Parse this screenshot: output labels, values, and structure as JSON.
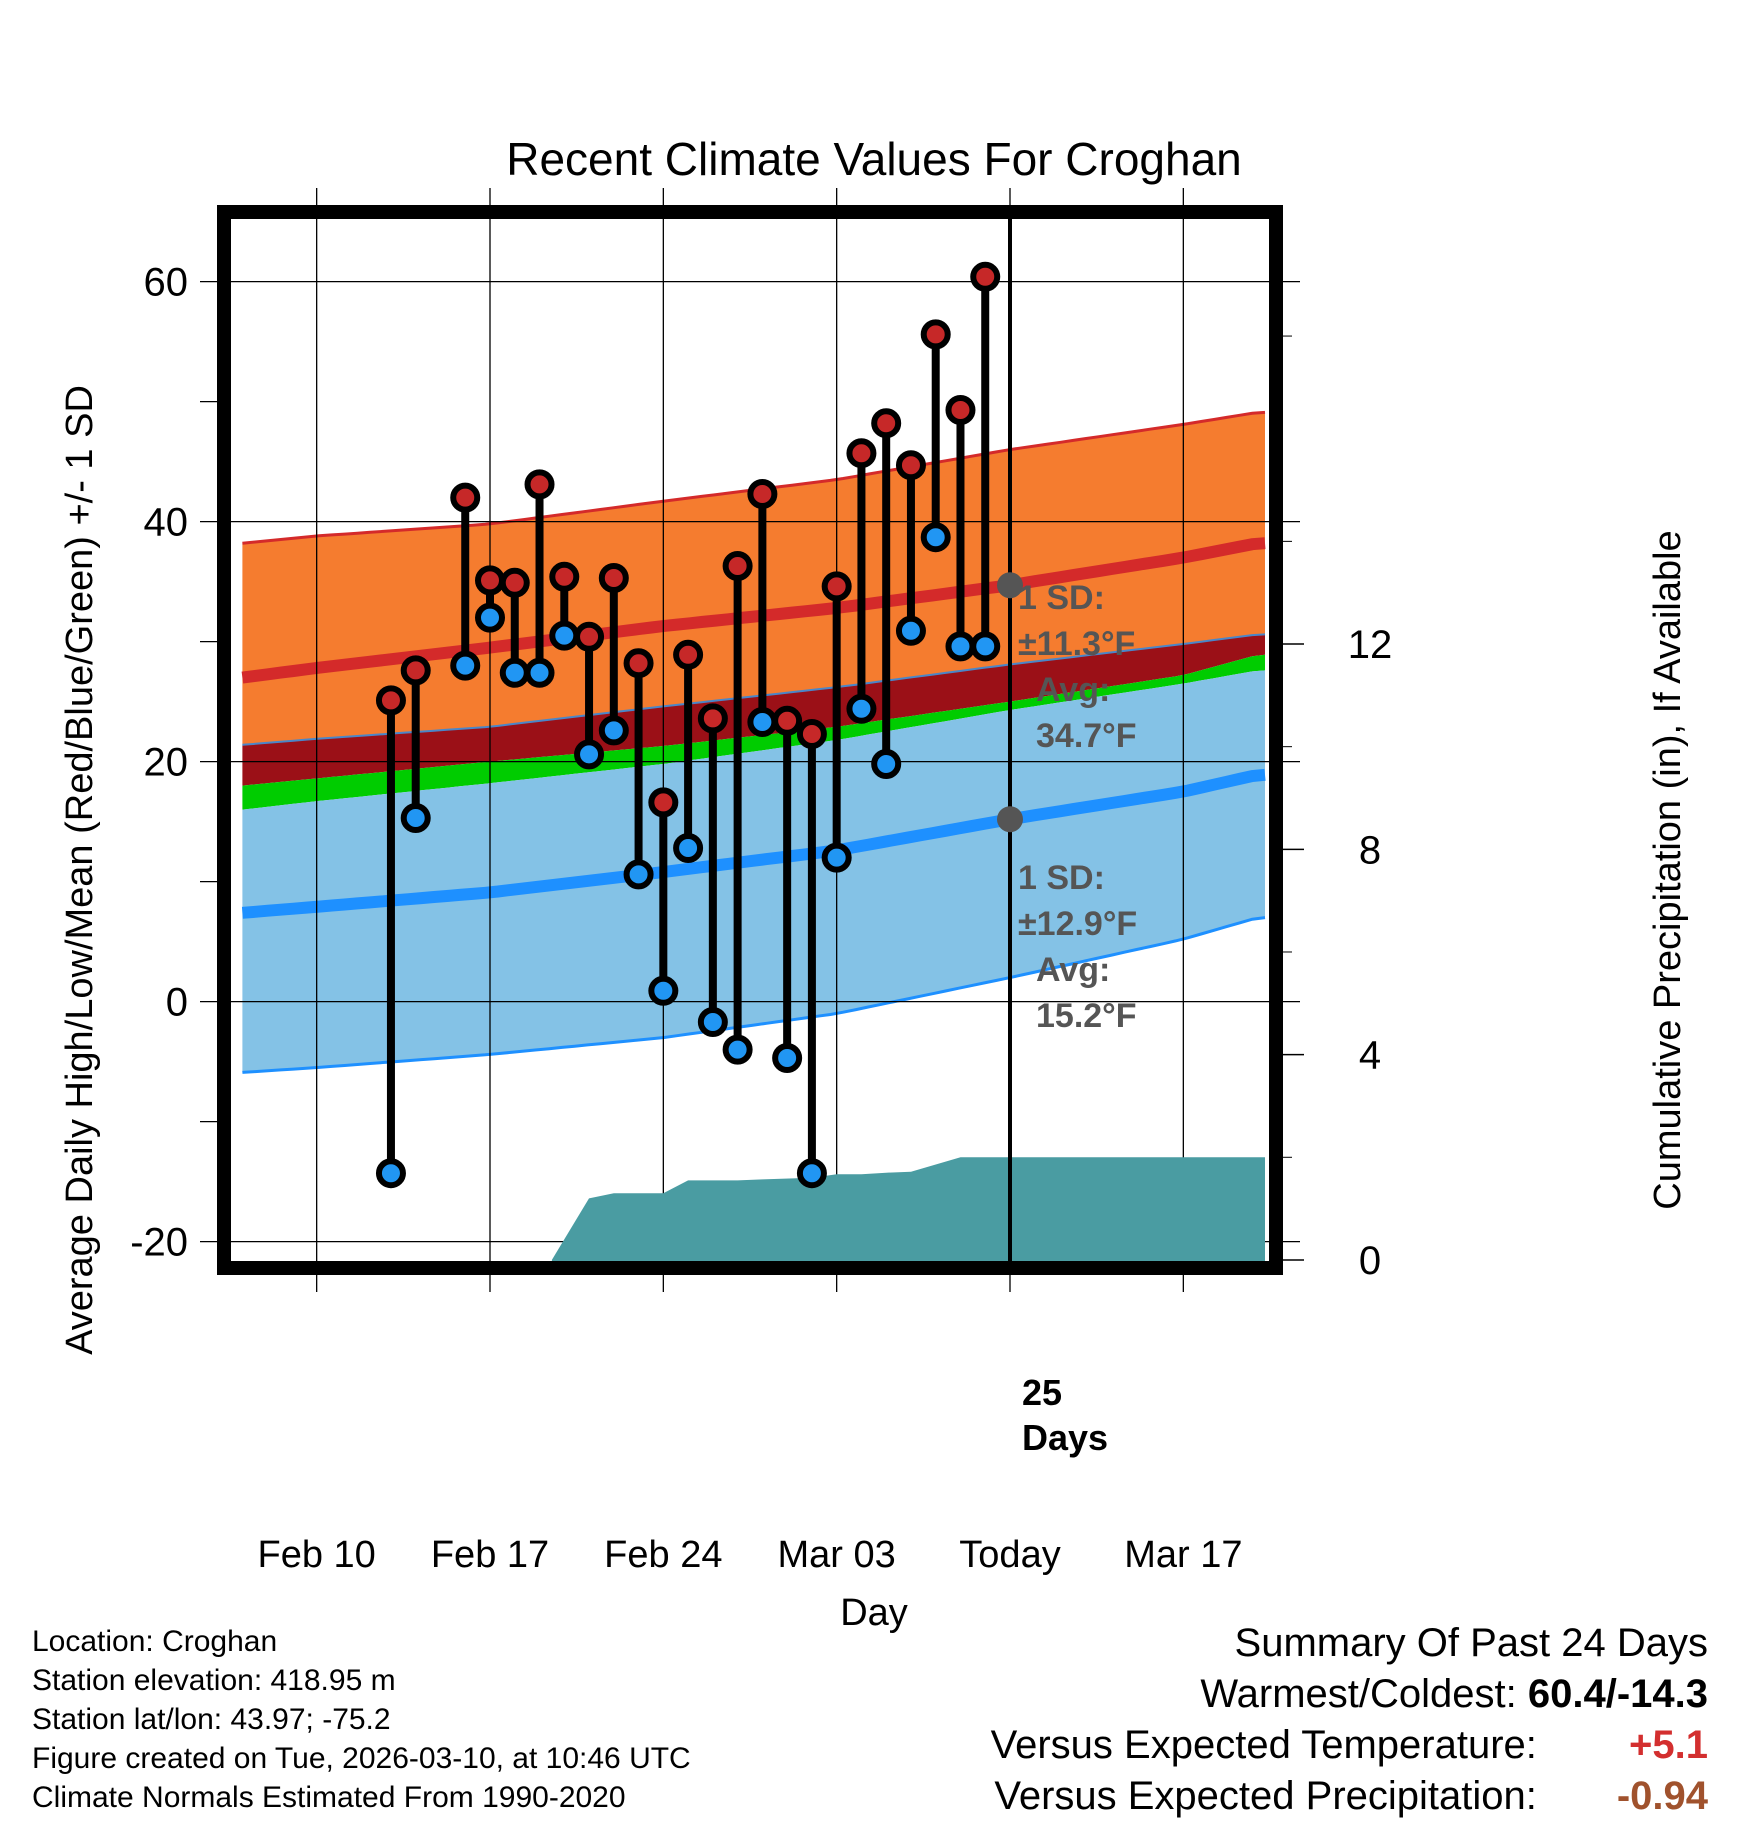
{
  "chart_data": {
    "type": "line",
    "title": "Recent Climate Values For Croghan",
    "xlabel": "Day",
    "ylabel": "Average Daily High/Low/Mean (Red/Blue/Green) +/- 1 SD",
    "y2label": "Cumulative Precipitation (in), If Available",
    "x_unit": "days since Feb 10",
    "xlim": [
      -3.5,
      38.5
    ],
    "ylim": [
      -21.7,
      65.3
    ],
    "y2lim": [
      -0.04,
      20.3
    ],
    "x_tick_labels": [
      {
        "x": 0,
        "label": "Feb 10"
      },
      {
        "x": 7,
        "label": "Feb 17"
      },
      {
        "x": 14,
        "label": "Feb 24"
      },
      {
        "x": 21,
        "label": "Mar 03"
      },
      {
        "x": 28,
        "label": "Today"
      },
      {
        "x": 35,
        "label": "Mar 17"
      }
    ],
    "y_ticks": [
      -20,
      0,
      20,
      40,
      60
    ],
    "y_minor_ticks": [
      -10,
      10,
      30,
      50
    ],
    "y2_ticks": [
      0,
      4,
      8,
      12
    ],
    "today_x": 28,
    "normals": {
      "x": [
        -3,
        0,
        7,
        14,
        21,
        28,
        35,
        38
      ],
      "high_mean": [
        27.0,
        27.8,
        29.5,
        31.3,
        32.8,
        34.7,
        37.0,
        38.2
      ],
      "high_plus_sd": [
        38.2,
        38.8,
        39.8,
        41.7,
        43.5,
        46.0,
        48.1,
        49.1
      ],
      "high_minus_sd": [
        21.4,
        21.9,
        22.9,
        24.6,
        26.2,
        28.1,
        29.8,
        30.6
      ],
      "mean_upper": [
        18.0,
        18.6,
        20.0,
        21.3,
        22.9,
        25.0,
        27.2,
        28.9
      ],
      "low_mean": [
        7.4,
        7.9,
        9.1,
        10.8,
        12.6,
        15.2,
        17.5,
        18.9
      ],
      "low_plus_sd": [
        16.0,
        16.7,
        18.2,
        19.8,
        21.8,
        24.3,
        26.5,
        27.6
      ],
      "low_minus_sd": [
        -5.9,
        -5.5,
        -4.4,
        -3.0,
        -1.0,
        2.0,
        5.2,
        7.0
      ]
    },
    "series": [
      {
        "name": "Daily High",
        "x": [
          3,
          4,
          6,
          7,
          8,
          9,
          10,
          11,
          12,
          13,
          14,
          15,
          16,
          17,
          18,
          19,
          20,
          21,
          22,
          23,
          24,
          25,
          26,
          27
        ],
        "values": [
          25.1,
          27.6,
          42.0,
          35.1,
          34.9,
          43.1,
          35.4,
          30.4,
          35.3,
          28.2,
          16.6,
          28.9,
          23.6,
          36.3,
          42.3,
          23.4,
          22.3,
          34.6,
          45.7,
          48.2,
          44.7,
          55.6,
          49.3,
          60.4
        ]
      },
      {
        "name": "Daily Low",
        "x": [
          3,
          4,
          6,
          7,
          8,
          9,
          10,
          11,
          12,
          13,
          14,
          15,
          16,
          17,
          18,
          19,
          20,
          21,
          22,
          23,
          24,
          25,
          26,
          27
        ],
        "values": [
          -14.3,
          15.3,
          28.0,
          32.0,
          27.4,
          27.4,
          30.5,
          20.6,
          22.6,
          10.6,
          0.9,
          12.8,
          -1.7,
          -4.0,
          23.3,
          -4.7,
          -14.3,
          12.0,
          24.4,
          19.8,
          30.9,
          38.7,
          29.6,
          29.6
        ]
      },
      {
        "name": "Cumulative Precipitation",
        "x": [
          9.5,
          11,
          12,
          14,
          15,
          17,
          18,
          20,
          21,
          22,
          23,
          24,
          26,
          38.3
        ],
        "values": [
          0.0,
          1.2,
          1.3,
          1.3,
          1.55,
          1.55,
          1.57,
          1.6,
          1.67,
          1.67,
          1.7,
          1.72,
          2.0,
          2.0
        ]
      }
    ],
    "annotations": {
      "high": {
        "sd_label": "1 SD:",
        "sd_value": "±11.3°F",
        "avg_label": "Avg:",
        "avg_value": "34.7°F",
        "avg": 34.7
      },
      "low": {
        "sd_label": "1 SD:",
        "sd_value": "±12.9°F",
        "avg_label": "Avg:",
        "avg_value": "15.2°F",
        "avg": 15.2
      },
      "days_count": "25",
      "days_label": "Days"
    }
  },
  "colors": {
    "high_band": "#f57c2f",
    "high_line": "#d42a2a",
    "mean_band": "#9b1017",
    "mean_green": "#00cc00",
    "low_band": "#84c2e6",
    "low_line": "#1e90ff",
    "precip": "#4a9ca2",
    "high_marker": "#c62828",
    "low_marker": "#2196f3",
    "annotation_text": "#555555",
    "plus_value": "#d32f2f",
    "minus_value": "#a0522d"
  },
  "footer": {
    "location": "Location: Croghan",
    "elevation": "Station elevation: 418.95 m",
    "latlon": "Station lat/lon: 43.97; -75.2",
    "created": "Figure created on Tue, 2026-03-10, at 10:46 UTC",
    "normals": "Climate Normals Estimated From 1990-2020"
  },
  "summary": {
    "title": "Summary Of Past 24 Days",
    "warm_cold_label": "Warmest/Coldest:",
    "warm_cold_value": "60.4/-14.3",
    "temp_label": "Versus Expected Temperature:",
    "temp_value": "+5.1",
    "precip_label": "Versus Expected Precipitation:",
    "precip_value": "-0.94"
  }
}
